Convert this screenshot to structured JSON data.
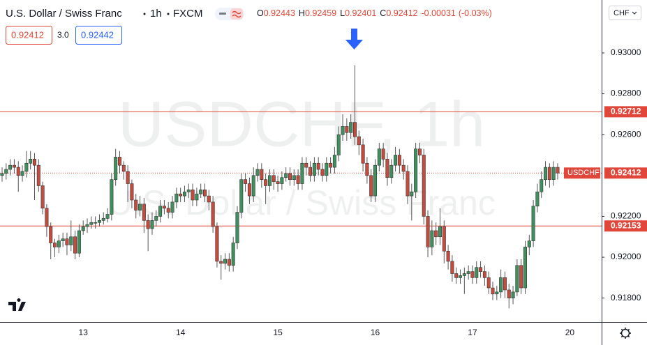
{
  "header": {
    "title": "U.S. Dollar / Swiss Franc",
    "interval": "1h",
    "source": "FXCM",
    "ohlc": [
      {
        "label": "O",
        "value": 0.92443
      },
      {
        "label": "H",
        "value": 0.92459
      },
      {
        "label": "L",
        "value": 0.92401
      },
      {
        "label": "C",
        "value": 0.92412
      }
    ],
    "change": -0.00031,
    "change_percent": "(-0.03%)",
    "sell": "0.92412",
    "spread": "3.0",
    "buy": "0.92442",
    "currency": "CHF"
  },
  "chart_data": {
    "type": "candlestick",
    "watermark": "USDCHF, 1h",
    "watermark_subtitle": "U.S. Dollar / Swiss Franc",
    "up_color": "#3f8f5f",
    "down_color": "#c64b3f",
    "categories": [
      null,
      null,
      null,
      null,
      null,
      null,
      null,
      null,
      null,
      null,
      null,
      null,
      null,
      null,
      null,
      null,
      null,
      null,
      null,
      null,
      "13",
      null,
      null,
      null,
      null,
      null,
      null,
      null,
      null,
      null,
      null,
      null,
      null,
      null,
      null,
      null,
      null,
      null,
      null,
      null,
      null,
      null,
      null,
      null,
      "14",
      null,
      null,
      null,
      null,
      null,
      null,
      null,
      null,
      null,
      null,
      null,
      null,
      null,
      null,
      null,
      null,
      null,
      null,
      null,
      null,
      null,
      null,
      null,
      "15",
      null,
      null,
      null,
      null,
      null,
      null,
      null,
      null,
      null,
      null,
      null,
      null,
      null,
      null,
      null,
      null,
      null,
      null,
      null,
      null,
      null,
      null,
      null,
      "16",
      null,
      null,
      null,
      null,
      null,
      null,
      null,
      null,
      null,
      null,
      null,
      null,
      null,
      null,
      null,
      null,
      null,
      null,
      null,
      null,
      null,
      null,
      null,
      "17",
      null,
      null,
      null,
      null,
      null,
      null,
      null,
      null,
      null,
      null,
      null,
      null,
      null,
      null,
      null,
      null,
      null,
      null,
      null,
      null,
      null,
      null,
      null,
      "20"
    ],
    "open": [
      0.924,
      0.9241,
      0.9243,
      0.9245,
      0.9244,
      0.924,
      0.9242,
      0.9246,
      0.9248,
      0.9245,
      0.9235,
      0.9224,
      0.9215,
      0.9207,
      0.9205,
      0.9208,
      0.9209,
      0.9206,
      0.921,
      0.9202,
      0.9213,
      0.9215,
      0.9216,
      0.9217,
      0.9217,
      0.9218,
      0.9219,
      0.9221,
      0.9238,
      0.9249,
      0.9245,
      0.9242,
      0.9236,
      0.9228,
      0.9223,
      0.9226,
      0.9218,
      0.9214,
      0.9218,
      0.922,
      0.9225,
      0.9224,
      0.9222,
      0.9227,
      0.9231,
      0.923,
      0.9232,
      0.9233,
      0.9228,
      0.9231,
      0.9233,
      0.923,
      0.9227,
      0.9215,
      0.9198,
      0.9197,
      0.9199,
      0.9196,
      0.9207,
      0.9222,
      0.9238,
      0.9236,
      0.923,
      0.924,
      0.9243,
      0.9238,
      0.9235,
      0.924,
      0.9237,
      0.9236,
      0.9239,
      0.9241,
      0.9238,
      0.924,
      0.9236,
      0.9246,
      0.9244,
      0.924,
      0.9246,
      0.9243,
      0.924,
      0.9246,
      0.9244,
      0.925,
      0.926,
      0.9264,
      0.9261,
      0.9266,
      0.9259,
      0.9255,
      0.9246,
      0.924,
      0.923,
      0.9245,
      0.9253,
      0.9248,
      0.9239,
      0.9245,
      0.925,
      0.9245,
      0.9242,
      0.923,
      0.9232,
      0.9253,
      0.925,
      0.922,
      0.9205,
      0.9213,
      0.921,
      0.9215,
      0.9203,
      0.9198,
      0.9192,
      0.919,
      0.9191,
      0.9192,
      0.9193,
      0.919,
      0.9195,
      0.9193,
      0.919,
      0.9185,
      0.9182,
      0.9183,
      0.919,
      0.9184,
      0.918,
      0.9183,
      0.9196,
      0.9185,
      0.9205,
      0.9208,
      0.9225,
      0.9232,
      0.9238,
      0.9244,
      0.9238,
      0.9244,
      null,
      null,
      null
    ],
    "high": [
      0.9244,
      0.9246,
      0.9248,
      0.9248,
      0.9247,
      0.9245,
      0.9252,
      0.9252,
      0.9251,
      0.9248,
      0.9237,
      0.9226,
      0.9217,
      0.9209,
      0.9211,
      0.9212,
      0.9212,
      0.9218,
      0.9213,
      0.9216,
      0.9218,
      0.9219,
      0.922,
      0.922,
      0.9221,
      0.9222,
      0.9224,
      0.9241,
      0.9253,
      0.9252,
      0.9247,
      0.9245,
      0.9238,
      0.9231,
      0.923,
      0.9229,
      0.9221,
      0.9222,
      0.9223,
      0.9228,
      0.9228,
      0.9227,
      0.923,
      0.9234,
      0.9234,
      0.9235,
      0.9236,
      0.9236,
      0.9234,
      0.9236,
      0.9236,
      0.9233,
      0.923,
      0.9217,
      0.9201,
      0.9202,
      0.9202,
      0.921,
      0.9225,
      0.9241,
      0.9241,
      0.9239,
      0.9244,
      0.9246,
      0.9246,
      0.9241,
      0.9243,
      0.9243,
      0.924,
      0.9242,
      0.9244,
      0.9244,
      0.9243,
      0.9243,
      0.9249,
      0.9249,
      0.9247,
      0.9249,
      0.9249,
      0.9246,
      0.9249,
      0.9249,
      0.9254,
      0.9264,
      0.927,
      0.9268,
      0.927,
      0.9294,
      0.9262,
      0.9258,
      0.9249,
      0.9243,
      0.9248,
      0.9256,
      0.9256,
      0.9251,
      0.9248,
      0.9254,
      0.9253,
      0.9248,
      0.9245,
      0.9236,
      0.9256,
      0.9256,
      0.9253,
      0.9223,
      0.9218,
      0.9217,
      0.9224,
      0.9218,
      0.9206,
      0.9201,
      0.9195,
      0.9194,
      0.9195,
      0.9196,
      0.9196,
      0.9198,
      0.9198,
      0.9196,
      0.9193,
      0.9188,
      0.9186,
      0.9194,
      0.9193,
      0.9187,
      0.9186,
      0.9199,
      0.9199,
      0.9208,
      0.9211,
      0.9228,
      0.9236,
      0.9242,
      0.9247,
      0.9246,
      0.9247,
      0.9246,
      null,
      null,
      null
    ],
    "low": [
      0.9237,
      0.9238,
      0.924,
      0.9241,
      0.9232,
      0.9237,
      0.9239,
      0.9243,
      0.9228,
      0.9232,
      0.9221,
      0.921,
      0.9199,
      0.92,
      0.9202,
      0.9205,
      0.9201,
      0.9203,
      0.9199,
      0.92,
      0.9211,
      0.9212,
      0.9214,
      0.9214,
      0.9215,
      0.9216,
      0.9217,
      0.9218,
      0.9235,
      0.9241,
      0.9238,
      0.9227,
      0.9224,
      0.9219,
      0.922,
      0.9212,
      0.9203,
      0.9211,
      0.9215,
      0.9217,
      0.9221,
      0.9219,
      0.9219,
      0.9224,
      0.9227,
      0.9227,
      0.9229,
      0.9225,
      0.9225,
      0.9229,
      0.9227,
      0.9223,
      0.9212,
      0.9195,
      0.9189,
      0.9194,
      0.9193,
      0.9193,
      0.9204,
      0.9219,
      0.9232,
      0.9226,
      0.9227,
      0.9237,
      0.9234,
      0.9226,
      0.9232,
      0.9233,
      0.9232,
      0.9233,
      0.9237,
      0.9235,
      0.9235,
      0.9233,
      0.9233,
      0.924,
      0.9237,
      0.9237,
      0.924,
      0.9237,
      0.9237,
      0.9241,
      0.9241,
      0.9247,
      0.9257,
      0.9257,
      0.9258,
      0.9255,
      0.925,
      0.9242,
      0.9236,
      0.9227,
      0.9227,
      0.9242,
      0.9244,
      0.9235,
      0.9236,
      0.9242,
      0.9241,
      0.9238,
      0.9226,
      0.9218,
      0.9229,
      0.9246,
      0.9216,
      0.92,
      0.9201,
      0.9206,
      0.9206,
      0.9197,
      0.9194,
      0.9188,
      0.9187,
      0.9187,
      0.9182,
      0.9189,
      0.9187,
      0.9187,
      0.919,
      0.9186,
      0.9182,
      0.9179,
      0.9179,
      0.918,
      0.918,
      0.9175,
      0.9177,
      0.9181,
      0.9182,
      0.9182,
      0.9201,
      0.9205,
      0.9222,
      0.9229,
      0.9235,
      0.9234,
      0.9235,
      0.9238,
      null,
      null,
      null
    ],
    "close": [
      0.9241,
      0.9243,
      0.9245,
      0.9244,
      0.924,
      0.9242,
      0.9246,
      0.9248,
      0.9245,
      0.9235,
      0.9224,
      0.9215,
      0.9207,
      0.9205,
      0.9208,
      0.9209,
      0.9206,
      0.921,
      0.9202,
      0.9213,
      0.9215,
      0.9216,
      0.9217,
      0.9217,
      0.9218,
      0.9219,
      0.9221,
      0.9238,
      0.9249,
      0.9245,
      0.9242,
      0.9236,
      0.9228,
      0.9223,
      0.9226,
      0.9218,
      0.9214,
      0.9218,
      0.922,
      0.9225,
      0.9224,
      0.9222,
      0.9227,
      0.9231,
      0.923,
      0.9232,
      0.9233,
      0.9228,
      0.9231,
      0.9233,
      0.923,
      0.9227,
      0.9215,
      0.9198,
      0.9197,
      0.9199,
      0.9196,
      0.9207,
      0.9222,
      0.9238,
      0.9236,
      0.923,
      0.924,
      0.9243,
      0.9238,
      0.9235,
      0.924,
      0.9237,
      0.9236,
      0.9239,
      0.9241,
      0.9238,
      0.924,
      0.9236,
      0.9246,
      0.9244,
      0.924,
      0.9246,
      0.9243,
      0.924,
      0.9246,
      0.9244,
      0.925,
      0.926,
      0.9264,
      0.9261,
      0.9266,
      0.9259,
      0.9255,
      0.9246,
      0.924,
      0.923,
      0.9245,
      0.9253,
      0.9248,
      0.9239,
      0.9245,
      0.925,
      0.9245,
      0.9242,
      0.923,
      0.9232,
      0.9253,
      0.925,
      0.922,
      0.9205,
      0.9213,
      0.921,
      0.9215,
      0.9203,
      0.9198,
      0.9192,
      0.919,
      0.9191,
      0.9192,
      0.9193,
      0.919,
      0.9195,
      0.9193,
      0.919,
      0.9185,
      0.9182,
      0.9183,
      0.919,
      0.9184,
      0.918,
      0.9183,
      0.9196,
      0.9185,
      0.9205,
      0.9208,
      0.9225,
      0.9232,
      0.9238,
      0.9244,
      0.9238,
      0.9244,
      0.92412,
      null,
      null,
      null
    ],
    "ylim": [
      0.91683,
      0.93259
    ],
    "yticks": [
      {
        "value": 0.918,
        "label": "0.91800"
      },
      {
        "value": 0.92,
        "label": "0.92000"
      },
      {
        "value": 0.922,
        "label": "0.92200"
      },
      {
        "value": 0.926,
        "label": "0.92600"
      },
      {
        "value": 0.928,
        "label": "0.92800"
      },
      {
        "value": 0.93,
        "label": "0.93000"
      }
    ],
    "levels": [
      0.92712,
      0.92153
    ],
    "level_color": "#e0473a",
    "current": {
      "symbol": "USDCHF",
      "price": 0.92412
    }
  }
}
